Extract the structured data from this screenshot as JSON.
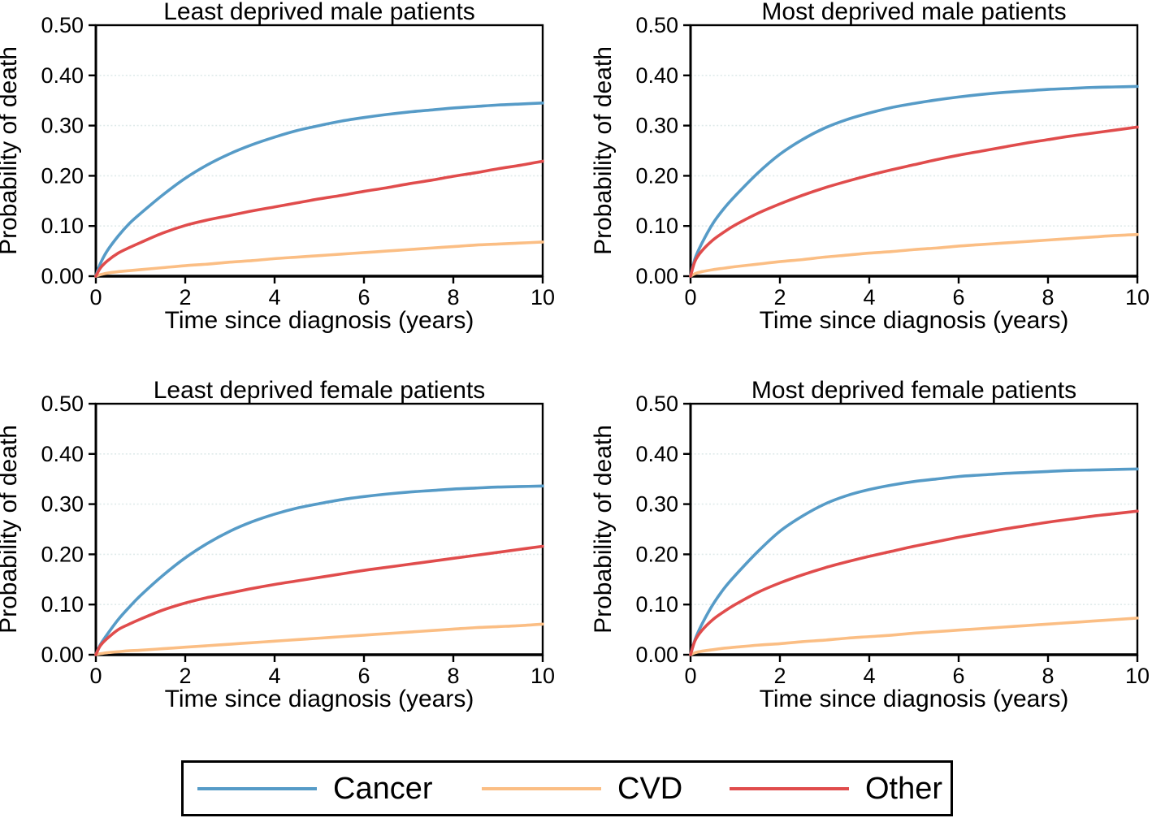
{
  "figure": {
    "y_axis_label": "Probability of death",
    "x_axis_label": "Time since diagnosis (years)",
    "y_tick_labels": [
      "0.00",
      "0.10",
      "0.20",
      "0.30",
      "0.40",
      "0.50"
    ],
    "y_tick_values": [
      0,
      0.1,
      0.2,
      0.3,
      0.4,
      0.5
    ],
    "x_tick_labels": [
      "0",
      "2",
      "4",
      "6",
      "8",
      "10"
    ],
    "x_tick_values": [
      0,
      2,
      4,
      6,
      8,
      10
    ]
  },
  "colors": {
    "cancer": "#569BC7",
    "cvd": "#FBBE84",
    "other": "#E04C4C",
    "grid": "#DFEAEA",
    "axis": "#000000"
  },
  "legend": {
    "items": [
      {
        "label": "Cancer",
        "color_key": "cancer"
      },
      {
        "label": "CVD",
        "color_key": "cvd"
      },
      {
        "label": "Other",
        "color_key": "other"
      }
    ]
  },
  "chart_data": [
    {
      "type": "line",
      "title": "Least deprived male patients",
      "xlabel": "Time since diagnosis (years)",
      "ylabel": "Probability of death",
      "xlim": [
        0,
        10
      ],
      "ylim": [
        0,
        0.5
      ],
      "grid": "horizontal at 0.10,0.20,0.30,0.40",
      "x": [
        0,
        0.1,
        0.25,
        0.5,
        0.75,
        1,
        1.5,
        2,
        2.5,
        3,
        3.5,
        4,
        4.5,
        5,
        5.5,
        6,
        6.5,
        7,
        7.5,
        8,
        8.5,
        9,
        9.5,
        10
      ],
      "series": [
        {
          "name": "Cancer",
          "color_key": "cancer",
          "values": [
            0,
            0.025,
            0.05,
            0.08,
            0.105,
            0.125,
            0.162,
            0.195,
            0.222,
            0.244,
            0.262,
            0.277,
            0.29,
            0.3,
            0.309,
            0.316,
            0.322,
            0.327,
            0.331,
            0.335,
            0.338,
            0.341,
            0.343,
            0.345
          ]
        },
        {
          "name": "CVD",
          "color_key": "cvd",
          "values": [
            0,
            0.003,
            0.006,
            0.009,
            0.011,
            0.013,
            0.017,
            0.021,
            0.024,
            0.028,
            0.031,
            0.035,
            0.038,
            0.041,
            0.044,
            0.047,
            0.05,
            0.053,
            0.056,
            0.059,
            0.062,
            0.064,
            0.066,
            0.068
          ]
        },
        {
          "name": "Other",
          "color_key": "other",
          "values": [
            0,
            0.016,
            0.03,
            0.046,
            0.057,
            0.067,
            0.086,
            0.101,
            0.112,
            0.121,
            0.13,
            0.138,
            0.146,
            0.154,
            0.161,
            0.169,
            0.176,
            0.184,
            0.191,
            0.199,
            0.206,
            0.214,
            0.221,
            0.229
          ]
        }
      ]
    },
    {
      "type": "line",
      "title": "Most deprived male patients",
      "xlabel": "Time since diagnosis (years)",
      "ylabel": "Probability of death",
      "xlim": [
        0,
        10
      ],
      "ylim": [
        0,
        0.5
      ],
      "grid": "horizontal at 0.10,0.20,0.30,0.40",
      "x": [
        0,
        0.1,
        0.25,
        0.5,
        0.75,
        1,
        1.5,
        2,
        2.5,
        3,
        3.5,
        4,
        4.5,
        5,
        5.5,
        6,
        6.5,
        7,
        7.5,
        8,
        8.5,
        9,
        9.5,
        10
      ],
      "series": [
        {
          "name": "Cancer",
          "color_key": "cancer",
          "values": [
            0,
            0.035,
            0.065,
            0.105,
            0.135,
            0.16,
            0.205,
            0.243,
            0.272,
            0.295,
            0.312,
            0.325,
            0.336,
            0.344,
            0.351,
            0.357,
            0.362,
            0.366,
            0.369,
            0.372,
            0.374,
            0.376,
            0.377,
            0.378
          ]
        },
        {
          "name": "CVD",
          "color_key": "cvd",
          "values": [
            0,
            0.005,
            0.009,
            0.013,
            0.016,
            0.019,
            0.024,
            0.029,
            0.033,
            0.038,
            0.042,
            0.046,
            0.049,
            0.053,
            0.056,
            0.06,
            0.063,
            0.066,
            0.069,
            0.072,
            0.075,
            0.078,
            0.081,
            0.083
          ]
        },
        {
          "name": "Other",
          "color_key": "other",
          "values": [
            0,
            0.03,
            0.05,
            0.072,
            0.088,
            0.102,
            0.125,
            0.144,
            0.161,
            0.176,
            0.189,
            0.201,
            0.212,
            0.222,
            0.232,
            0.241,
            0.249,
            0.257,
            0.265,
            0.272,
            0.279,
            0.285,
            0.291,
            0.297
          ]
        }
      ]
    },
    {
      "type": "line",
      "title": "Least deprived female patients",
      "xlabel": "Time since diagnosis (years)",
      "ylabel": "Probability of death",
      "xlim": [
        0,
        10
      ],
      "ylim": [
        0,
        0.5
      ],
      "grid": "horizontal at 0.10,0.20,0.30,0.40",
      "x": [
        0,
        0.1,
        0.25,
        0.5,
        0.75,
        1,
        1.5,
        2,
        2.5,
        3,
        3.5,
        4,
        4.5,
        5,
        5.5,
        6,
        6.5,
        7,
        7.5,
        8,
        8.5,
        9,
        9.5,
        10
      ],
      "series": [
        {
          "name": "Cancer",
          "color_key": "cancer",
          "values": [
            0,
            0.02,
            0.04,
            0.07,
            0.095,
            0.118,
            0.158,
            0.193,
            0.222,
            0.246,
            0.265,
            0.28,
            0.292,
            0.301,
            0.309,
            0.315,
            0.32,
            0.324,
            0.327,
            0.33,
            0.332,
            0.334,
            0.335,
            0.336
          ]
        },
        {
          "name": "CVD",
          "color_key": "cvd",
          "values": [
            0,
            0.002,
            0.004,
            0.006,
            0.008,
            0.009,
            0.012,
            0.015,
            0.018,
            0.021,
            0.024,
            0.027,
            0.03,
            0.033,
            0.036,
            0.039,
            0.042,
            0.045,
            0.048,
            0.051,
            0.054,
            0.056,
            0.058,
            0.061
          ]
        },
        {
          "name": "Other",
          "color_key": "other",
          "values": [
            0,
            0.018,
            0.032,
            0.05,
            0.061,
            0.071,
            0.089,
            0.103,
            0.114,
            0.123,
            0.132,
            0.14,
            0.147,
            0.154,
            0.161,
            0.168,
            0.174,
            0.18,
            0.186,
            0.192,
            0.198,
            0.204,
            0.21,
            0.216
          ]
        }
      ]
    },
    {
      "type": "line",
      "title": "Most deprived female patients",
      "xlabel": "Time since diagnosis (years)",
      "ylabel": "Probability of death",
      "xlim": [
        0,
        10
      ],
      "ylim": [
        0,
        0.5
      ],
      "grid": "horizontal at 0.10,0.20,0.30,0.40",
      "x": [
        0,
        0.1,
        0.25,
        0.5,
        0.75,
        1,
        1.5,
        2,
        2.5,
        3,
        3.5,
        4,
        4.5,
        5,
        5.5,
        6,
        6.5,
        7,
        7.5,
        8,
        8.5,
        9,
        9.5,
        10
      ],
      "series": [
        {
          "name": "Cancer",
          "color_key": "cancer",
          "values": [
            0,
            0.03,
            0.06,
            0.1,
            0.132,
            0.158,
            0.205,
            0.246,
            0.276,
            0.3,
            0.317,
            0.329,
            0.338,
            0.345,
            0.35,
            0.355,
            0.358,
            0.361,
            0.363,
            0.365,
            0.367,
            0.368,
            0.369,
            0.37
          ]
        },
        {
          "name": "CVD",
          "color_key": "cvd",
          "values": [
            0,
            0.004,
            0.007,
            0.01,
            0.013,
            0.015,
            0.019,
            0.022,
            0.026,
            0.029,
            0.033,
            0.036,
            0.039,
            0.043,
            0.046,
            0.049,
            0.052,
            0.055,
            0.058,
            0.061,
            0.064,
            0.067,
            0.07,
            0.073
          ]
        },
        {
          "name": "Other",
          "color_key": "other",
          "values": [
            0,
            0.028,
            0.048,
            0.07,
            0.086,
            0.1,
            0.124,
            0.143,
            0.159,
            0.173,
            0.185,
            0.196,
            0.206,
            0.216,
            0.225,
            0.234,
            0.242,
            0.25,
            0.257,
            0.264,
            0.27,
            0.276,
            0.281,
            0.286
          ]
        }
      ]
    }
  ]
}
